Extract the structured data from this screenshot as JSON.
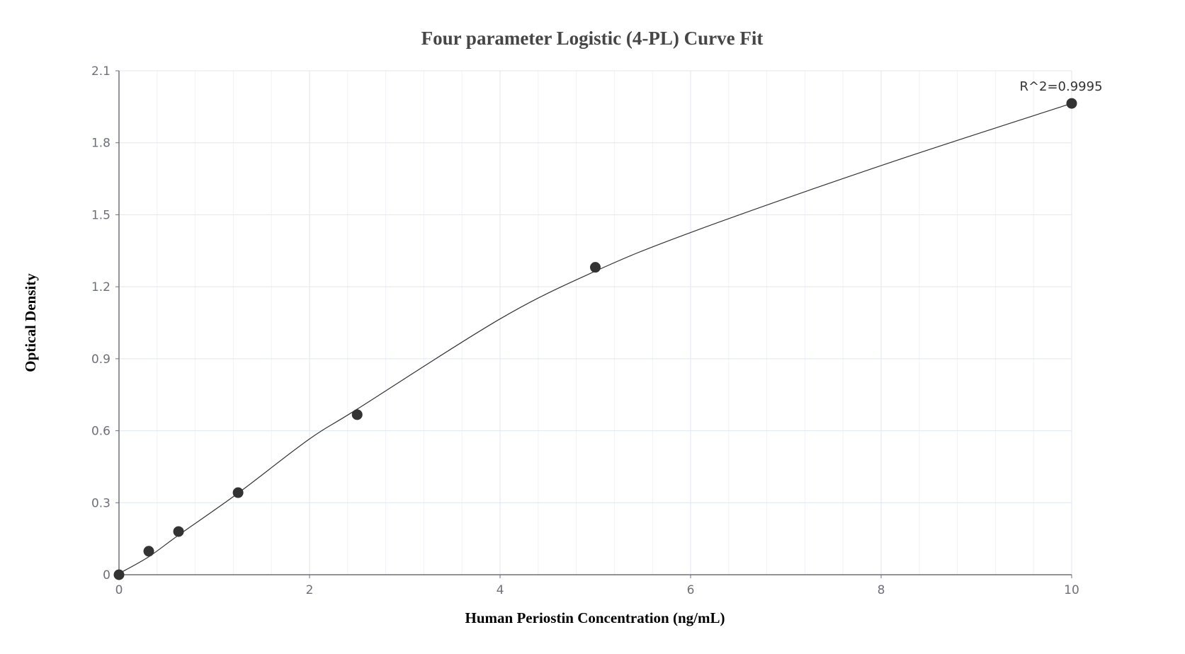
{
  "chart_data": {
    "type": "scatter",
    "title": "Four parameter Logistic (4-PL) Curve Fit",
    "xlabel": "Human Periostin Concentration (ng/mL)",
    "ylabel": "Optical Density",
    "xlim": [
      0,
      10
    ],
    "ylim": [
      0,
      2.1
    ],
    "xticks": [
      "0",
      "2",
      "4",
      "6",
      "8",
      "10"
    ],
    "yticks": [
      "0",
      "0.3",
      "0.6",
      "0.9",
      "1.2",
      "1.5",
      "1.8",
      "2.1"
    ],
    "grid": true,
    "points": {
      "x": [
        0,
        0.3125,
        0.625,
        1.25,
        2.5,
        5,
        10
      ],
      "y": [
        0,
        0.098,
        0.18,
        0.342,
        0.667,
        1.281,
        1.964
      ]
    },
    "fit_curve": {
      "x": [
        0,
        0.3125,
        0.625,
        1.25,
        2,
        2.5,
        4,
        5,
        6,
        8,
        10
      ],
      "y": [
        0.005,
        0.075,
        0.165,
        0.34,
        0.566,
        0.69,
        1.066,
        1.265,
        1.426,
        1.705,
        1.964
      ]
    },
    "annotation": "R^2=0.9995",
    "colors": {
      "points": "#333333",
      "curve": "#333333",
      "grid": "#e0e6f1",
      "axis": "#6e7079"
    }
  }
}
